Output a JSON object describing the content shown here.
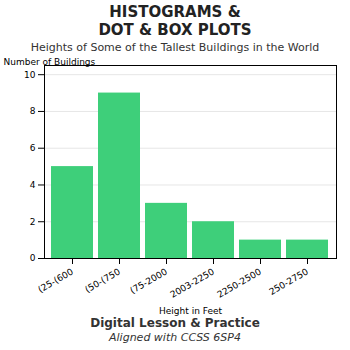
{
  "chart_data": {
    "type": "bar",
    "title": "Heights of Some of the Tallest Buildings in the World",
    "annotations": [
      "HISTOGRAMS &",
      "DOT & BOX PLOTS",
      "Digital Lesson & Practice",
      "Aligned with CCSS 6SP4"
    ],
    "x_label": "Height in Feet",
    "y_label": "Number of Buildings",
    "categories": [
      "(25-(600",
      "(50-(750",
      "(75-2000",
      "2003-2250",
      "2250-2500",
      "250-2750"
    ],
    "values": [
      5,
      9,
      3,
      2,
      1,
      1
    ],
    "color": "#3ecf7a",
    "ylim": [
      0,
      10.5
    ],
    "yticks": [
      0,
      2,
      4,
      6,
      8,
      10
    ],
    "grid": true
  }
}
